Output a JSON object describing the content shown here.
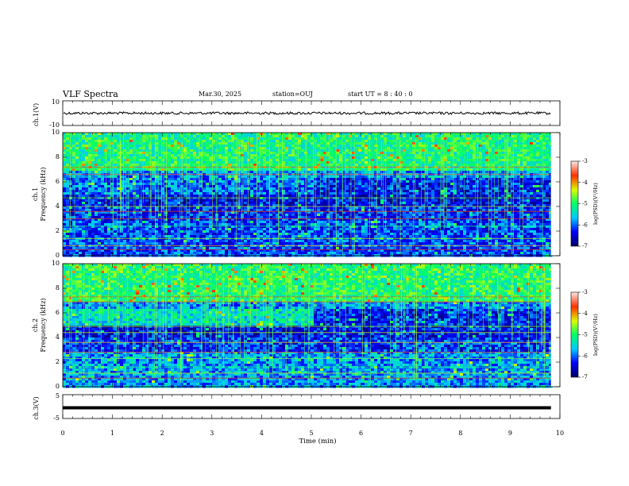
{
  "header": {
    "title": "VLF Spectra",
    "date": "Mar.30, 2025",
    "station": "station=OUJ",
    "start_ut": "start UT =   8 : 40 : 0"
  },
  "chart_data": [
    {
      "type": "line",
      "ylabel": "ch.1(V)",
      "ylim": [
        -10,
        10
      ],
      "y_ticks": [
        "10",
        "-10"
      ],
      "level": 0,
      "color": "#000000"
    },
    {
      "type": "heatmap",
      "ylabel_line1": "ch.1",
      "ylabel_line2": "Frequency (kHz)",
      "ylim": [
        0,
        10
      ],
      "y_ticks": [
        "0",
        "2",
        "4",
        "6",
        "8",
        "10"
      ],
      "colorbar": {
        "label": "log(PSD)(V²/Hz)",
        "range": [
          -7,
          -3
        ],
        "ticks": [
          "-3",
          "-4",
          "-5",
          "-6",
          "-7"
        ],
        "colors": [
          "#000060",
          "#0000ff",
          "#00c8ff",
          "#00ff66",
          "#d8ff00",
          "#ff3000",
          "#ffe6e6"
        ]
      }
    },
    {
      "type": "heatmap",
      "ylabel_line1": "ch.2",
      "ylabel_line2": "Frequency (kHz)",
      "ylim": [
        0,
        10
      ],
      "y_ticks": [
        "0",
        "2",
        "4",
        "6",
        "8",
        "10"
      ],
      "colorbar": {
        "label": "log(PSD)(V²/Hz)",
        "range": [
          -7,
          -3
        ],
        "ticks": [
          "-3",
          "-4",
          "-5",
          "-6",
          "-7"
        ],
        "colors": [
          "#000060",
          "#0000ff",
          "#00c8ff",
          "#00ff66",
          "#d8ff00",
          "#ff3000",
          "#ffe6e6"
        ]
      }
    },
    {
      "type": "line",
      "ylabel": "ch.3(V)",
      "ylim": [
        -5,
        5
      ],
      "y_ticks": [
        "5",
        "-5"
      ],
      "level": -0.5,
      "color": "#000000"
    }
  ],
  "x_axis": {
    "label": "Time (min)",
    "xlim": [
      0,
      10
    ],
    "ticks": [
      "0",
      "1",
      "2",
      "3",
      "4",
      "5",
      "6",
      "7",
      "8",
      "9",
      "10"
    ],
    "data_end": 9.82
  }
}
